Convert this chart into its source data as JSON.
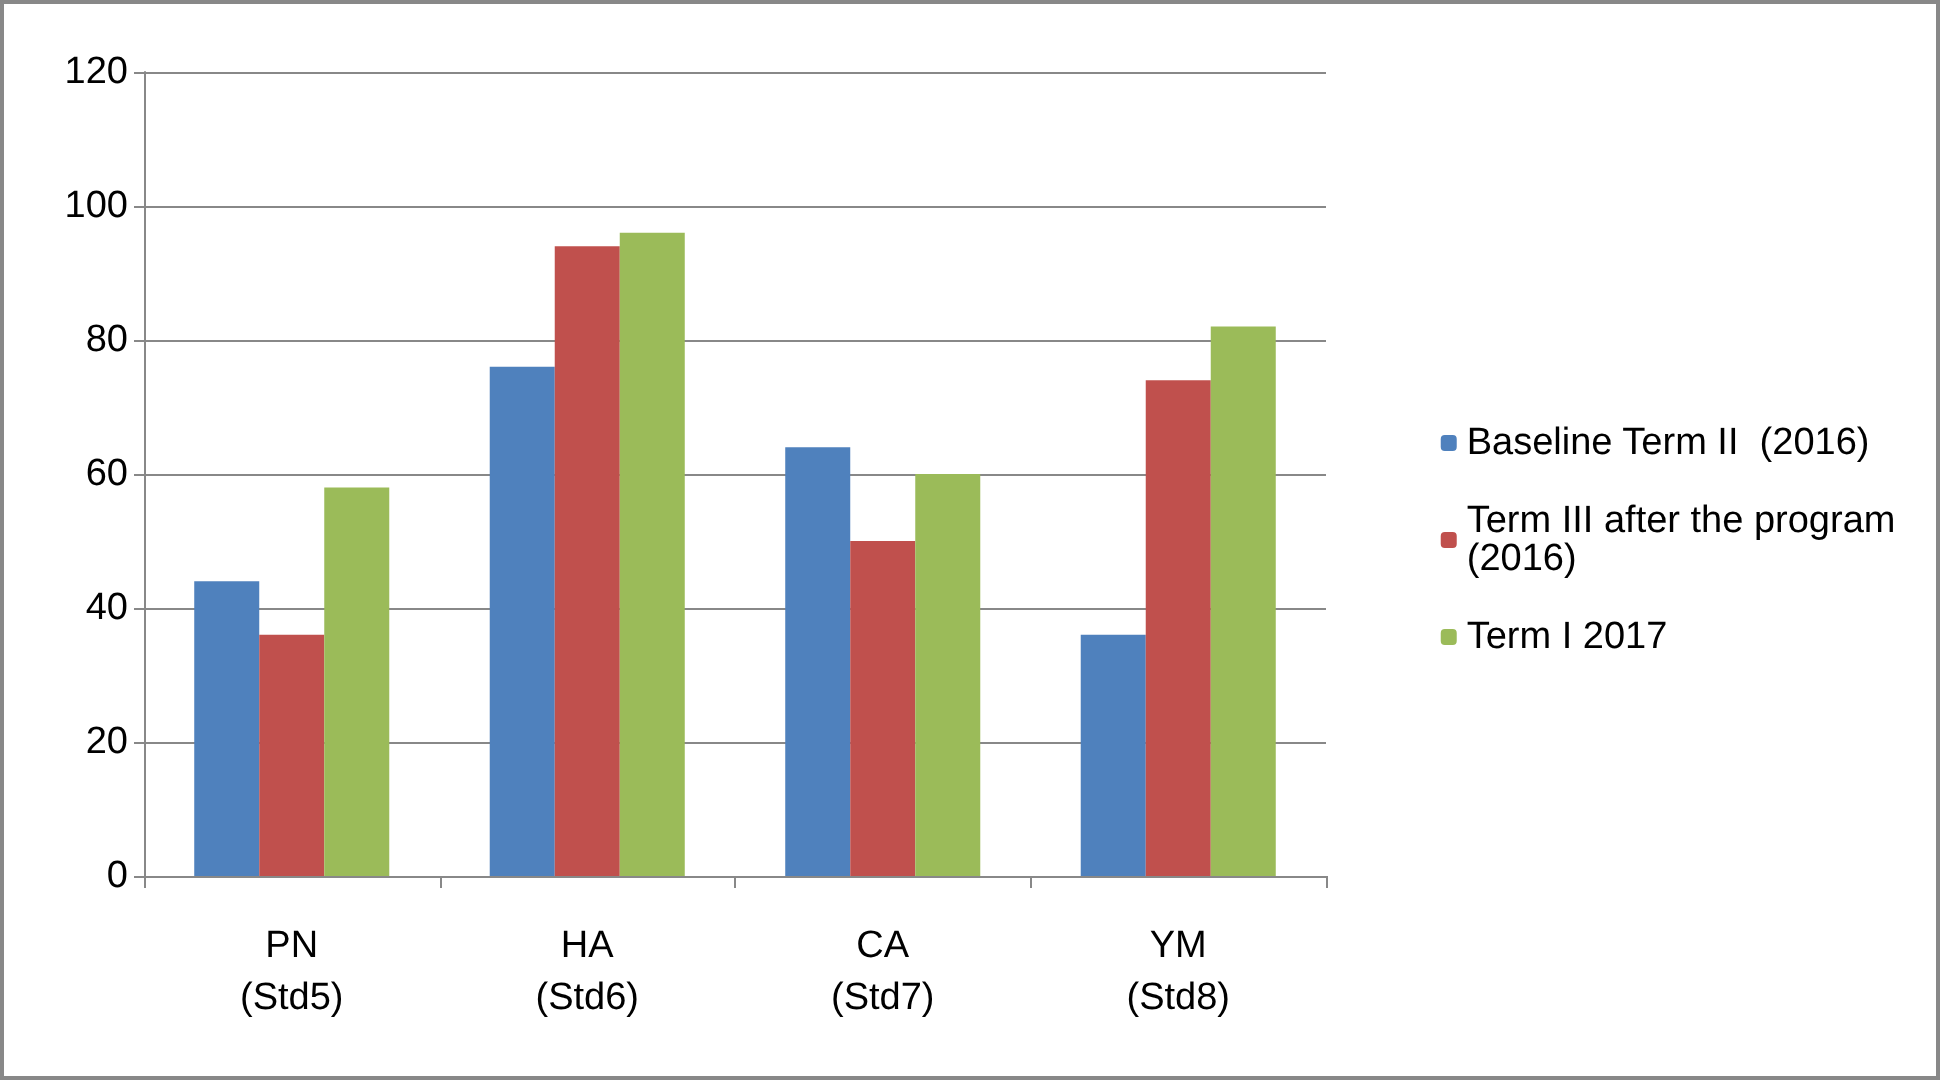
{
  "chart_data": {
    "type": "bar",
    "categories": [
      "PN\n(Std5)",
      "HA\n(Std6)",
      "CA\n(Std7)",
      "YM\n(Std8)"
    ],
    "series": [
      {
        "name": "Baseline Term II  (2016)",
        "color": "#4f81bd",
        "values": [
          44,
          76,
          64,
          36
        ]
      },
      {
        "name": "Term III after the program (2016)",
        "color": "#c0504d",
        "values": [
          36,
          94,
          50,
          74
        ]
      },
      {
        "name": "Term I 2017",
        "color": "#9bbb59",
        "values": [
          58,
          96,
          60,
          82
        ]
      }
    ],
    "ylim": [
      0,
      120
    ],
    "yticks": [
      0,
      20,
      40,
      60,
      80,
      100,
      120
    ],
    "grid": "y",
    "legend": "right"
  }
}
